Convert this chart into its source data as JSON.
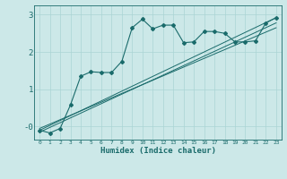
{
  "xlabel": "Humidex (Indice chaleur)",
  "bg_color": "#cce8e8",
  "line_color": "#1a6b6b",
  "grid_color": "#aad4d4",
  "xlim": [
    -0.5,
    23.5
  ],
  "ylim": [
    -0.35,
    3.25
  ],
  "xticks": [
    0,
    1,
    2,
    3,
    4,
    5,
    6,
    7,
    8,
    9,
    10,
    11,
    12,
    13,
    14,
    15,
    16,
    17,
    18,
    19,
    20,
    21,
    22,
    23
  ],
  "yticks": [
    0,
    1,
    2,
    3
  ],
  "ytick_labels": [
    "-0",
    "1",
    "2",
    "3"
  ],
  "main_line_x": [
    0,
    1,
    2,
    3,
    4,
    5,
    6,
    7,
    8,
    9,
    10,
    11,
    12,
    13,
    14,
    15,
    16,
    17,
    18,
    19,
    20,
    21,
    22,
    23
  ],
  "main_line_y": [
    -0.1,
    -0.17,
    -0.05,
    0.58,
    1.35,
    1.47,
    1.45,
    1.45,
    1.75,
    2.65,
    2.88,
    2.62,
    2.72,
    2.72,
    2.25,
    2.27,
    2.55,
    2.55,
    2.5,
    2.27,
    2.27,
    2.3,
    2.78,
    2.92
  ],
  "line2_x": [
    0,
    23
  ],
  "line2_y": [
    -0.1,
    2.92
  ],
  "line3_x": [
    0,
    23
  ],
  "line3_y": [
    -0.15,
    2.78
  ],
  "line4_x": [
    0,
    23
  ],
  "line4_y": [
    -0.05,
    2.65
  ]
}
